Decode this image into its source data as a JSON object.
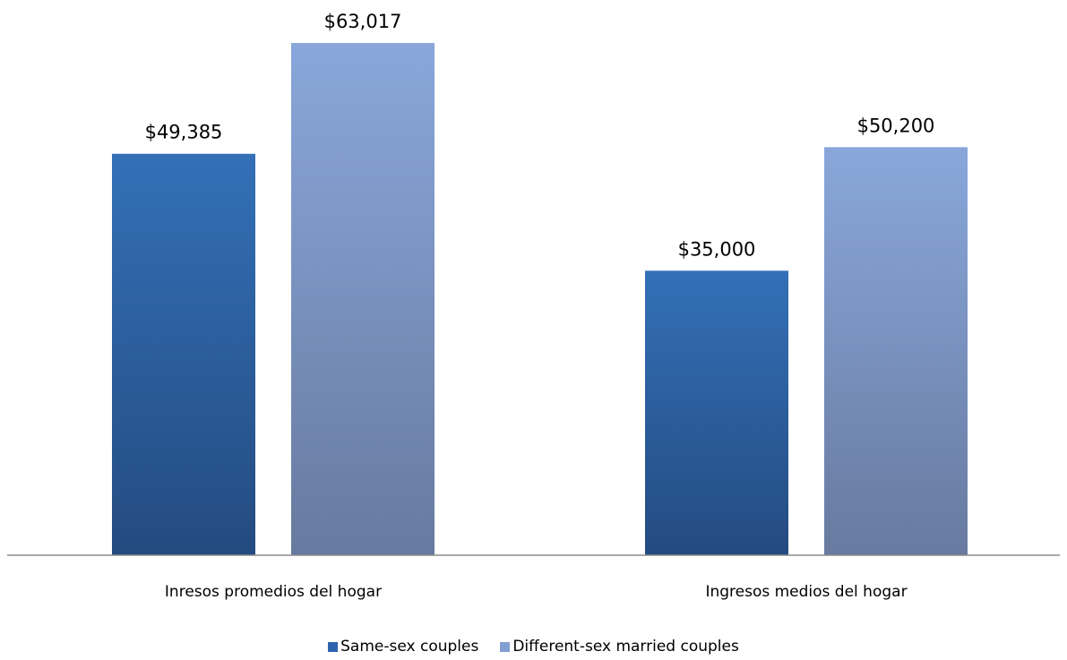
{
  "chart_data": {
    "type": "bar",
    "title": "",
    "xlabel": "",
    "ylabel": "",
    "categories": [
      "Inresos promedios del hogar",
      "Ingresos medios del hogar"
    ],
    "series": [
      {
        "name": "Same-sex couples",
        "values": [
          49385,
          35000
        ],
        "labels": [
          "$49,385",
          "$35,000"
        ],
        "color": "#2e64ae"
      },
      {
        "name": "Different-sex married couples",
        "values": [
          63017,
          50200
        ],
        "labels": [
          "$63,017",
          "$50,200"
        ],
        "color": "#819fd0"
      }
    ],
    "ylim": [
      0,
      63017
    ],
    "grid": false,
    "legend_position": "bottom"
  }
}
